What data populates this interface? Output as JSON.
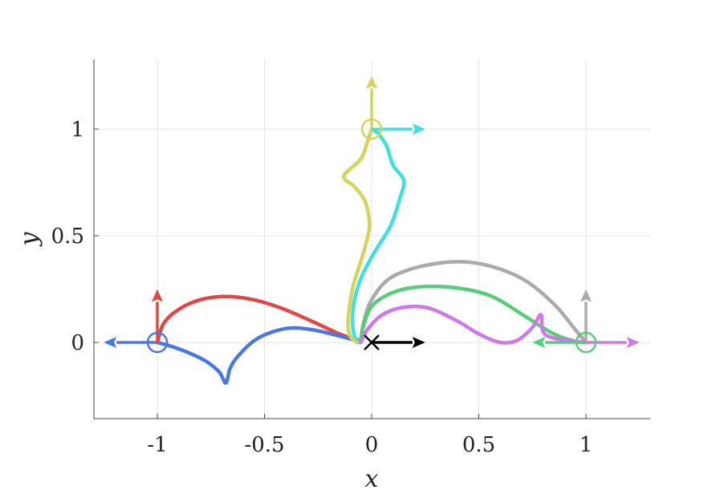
{
  "chart_data": {
    "type": "line",
    "title": "",
    "xlabel": "x",
    "ylabel": "y",
    "xlim": [
      -1.3,
      1.3
    ],
    "ylim": [
      -0.36,
      1.32
    ],
    "grid": true,
    "xticks": [
      {
        "v": -1,
        "label": "-1"
      },
      {
        "v": -0.5,
        "label": "-0.5"
      },
      {
        "v": 0,
        "label": "0"
      },
      {
        "v": 0.5,
        "label": "0.5"
      },
      {
        "v": 1,
        "label": "1"
      }
    ],
    "yticks": [
      {
        "v": 0,
        "label": "0"
      },
      {
        "v": 0.5,
        "label": "0.5"
      },
      {
        "v": 1,
        "label": "1"
      }
    ],
    "series": [
      {
        "color": "#e04848",
        "points": [
          [
            -1,
            0
          ],
          [
            -0.97,
            0.09
          ],
          [
            -0.9,
            0.155
          ],
          [
            -0.8,
            0.2
          ],
          [
            -0.68,
            0.215
          ],
          [
            -0.55,
            0.2
          ],
          [
            -0.42,
            0.16
          ],
          [
            -0.28,
            0.1
          ],
          [
            -0.15,
            0.04
          ],
          [
            -0.06,
            0.01
          ]
        ]
      },
      {
        "color": "#4a78e0",
        "points": [
          [
            -1,
            0
          ],
          [
            -0.93,
            -0.02
          ],
          [
            -0.85,
            -0.05
          ],
          [
            -0.77,
            -0.09
          ],
          [
            -0.71,
            -0.14
          ],
          [
            -0.68,
            -0.19
          ],
          [
            -0.66,
            -0.12
          ],
          [
            -0.62,
            -0.06
          ],
          [
            -0.53,
            0.02
          ],
          [
            -0.4,
            0.065
          ],
          [
            -0.28,
            0.06
          ],
          [
            -0.15,
            0.03
          ],
          [
            -0.06,
            0.005
          ]
        ]
      },
      {
        "color": "#3ee0e0",
        "points": [
          [
            0,
            1
          ],
          [
            0.03,
            0.98
          ],
          [
            0.07,
            0.92
          ],
          [
            0.1,
            0.83
          ],
          [
            0.15,
            0.76
          ],
          [
            0.13,
            0.67
          ],
          [
            0.09,
            0.55
          ],
          [
            0.03,
            0.45
          ],
          [
            0.0,
            0.4
          ],
          [
            -0.05,
            0.3
          ],
          [
            -0.08,
            0.2
          ],
          [
            -0.09,
            0.1
          ],
          [
            -0.08,
            0.03
          ],
          [
            -0.06,
            0.0
          ]
        ]
      },
      {
        "color": "#d4d45a",
        "points": [
          [
            0,
            1
          ],
          [
            -0.02,
            0.94
          ],
          [
            -0.05,
            0.86
          ],
          [
            -0.13,
            0.78
          ],
          [
            -0.08,
            0.73
          ],
          [
            -0.03,
            0.66
          ],
          [
            -0.01,
            0.55
          ],
          [
            -0.03,
            0.45
          ],
          [
            -0.06,
            0.35
          ],
          [
            -0.09,
            0.25
          ],
          [
            -0.11,
            0.1
          ],
          [
            -0.1,
            0.03
          ],
          [
            -0.07,
            0.0
          ]
        ]
      },
      {
        "color": "#aaaaaa",
        "points": [
          [
            -0.05,
            0.0
          ],
          [
            -0.04,
            0.08
          ],
          [
            0.0,
            0.2
          ],
          [
            0.1,
            0.31
          ],
          [
            0.3,
            0.37
          ],
          [
            0.5,
            0.37
          ],
          [
            0.7,
            0.3
          ],
          [
            0.85,
            0.18
          ],
          [
            0.95,
            0.06
          ],
          [
            1.0,
            0.0
          ]
        ]
      },
      {
        "color": "#58cc78",
        "points": [
          [
            -0.05,
            0.0
          ],
          [
            -0.04,
            0.07
          ],
          [
            0.01,
            0.18
          ],
          [
            0.15,
            0.25
          ],
          [
            0.35,
            0.26
          ],
          [
            0.55,
            0.22
          ],
          [
            0.72,
            0.12
          ],
          [
            0.85,
            0.04
          ],
          [
            0.95,
            0.005
          ],
          [
            1.0,
            0.0
          ]
        ]
      },
      {
        "color": "#cf78e8",
        "points": [
          [
            -0.05,
            0.0
          ],
          [
            -0.02,
            0.06
          ],
          [
            0.05,
            0.13
          ],
          [
            0.15,
            0.165
          ],
          [
            0.27,
            0.16
          ],
          [
            0.4,
            0.1
          ],
          [
            0.5,
            0.04
          ],
          [
            0.6,
            0.0
          ],
          [
            0.68,
            0.01
          ],
          [
            0.75,
            0.07
          ],
          [
            0.79,
            0.13
          ],
          [
            0.8,
            0.05
          ],
          [
            0.85,
            0.02
          ],
          [
            0.95,
            0.005
          ],
          [
            1.0,
            0.0
          ]
        ]
      }
    ],
    "markers": [
      {
        "x": -1,
        "y": 0,
        "shape": "circle",
        "color": "#4a78e0"
      },
      {
        "x": 0,
        "y": 1,
        "shape": "circle",
        "color": "#d4d45a"
      },
      {
        "x": 1,
        "y": 0,
        "shape": "circle",
        "color": "#58cc78"
      },
      {
        "x": 0,
        "y": 0,
        "shape": "cross",
        "color": "#000000"
      }
    ],
    "arrows": [
      {
        "x": -1,
        "y": 0,
        "dx": -0.25,
        "dy": 0,
        "color": "#4a78e0"
      },
      {
        "x": -1,
        "y": 0,
        "dx": 0,
        "dy": 0.25,
        "color": "#e04848"
      },
      {
        "x": 0,
        "y": 1,
        "dx": 0,
        "dy": 0.25,
        "color": "#d4d45a"
      },
      {
        "x": 0,
        "y": 1,
        "dx": 0.25,
        "dy": 0,
        "color": "#3ee0e0"
      },
      {
        "x": 1,
        "y": 0,
        "dx": 0,
        "dy": 0.25,
        "color": "#aaaaaa"
      },
      {
        "x": 1,
        "y": 0,
        "dx": -0.25,
        "dy": 0,
        "color": "#58cc78"
      },
      {
        "x": 1,
        "y": 0,
        "dx": 0.25,
        "dy": 0,
        "color": "#cf78e8"
      },
      {
        "x": 0,
        "y": 0,
        "dx": 0.25,
        "dy": 0,
        "color": "#000000"
      }
    ]
  }
}
